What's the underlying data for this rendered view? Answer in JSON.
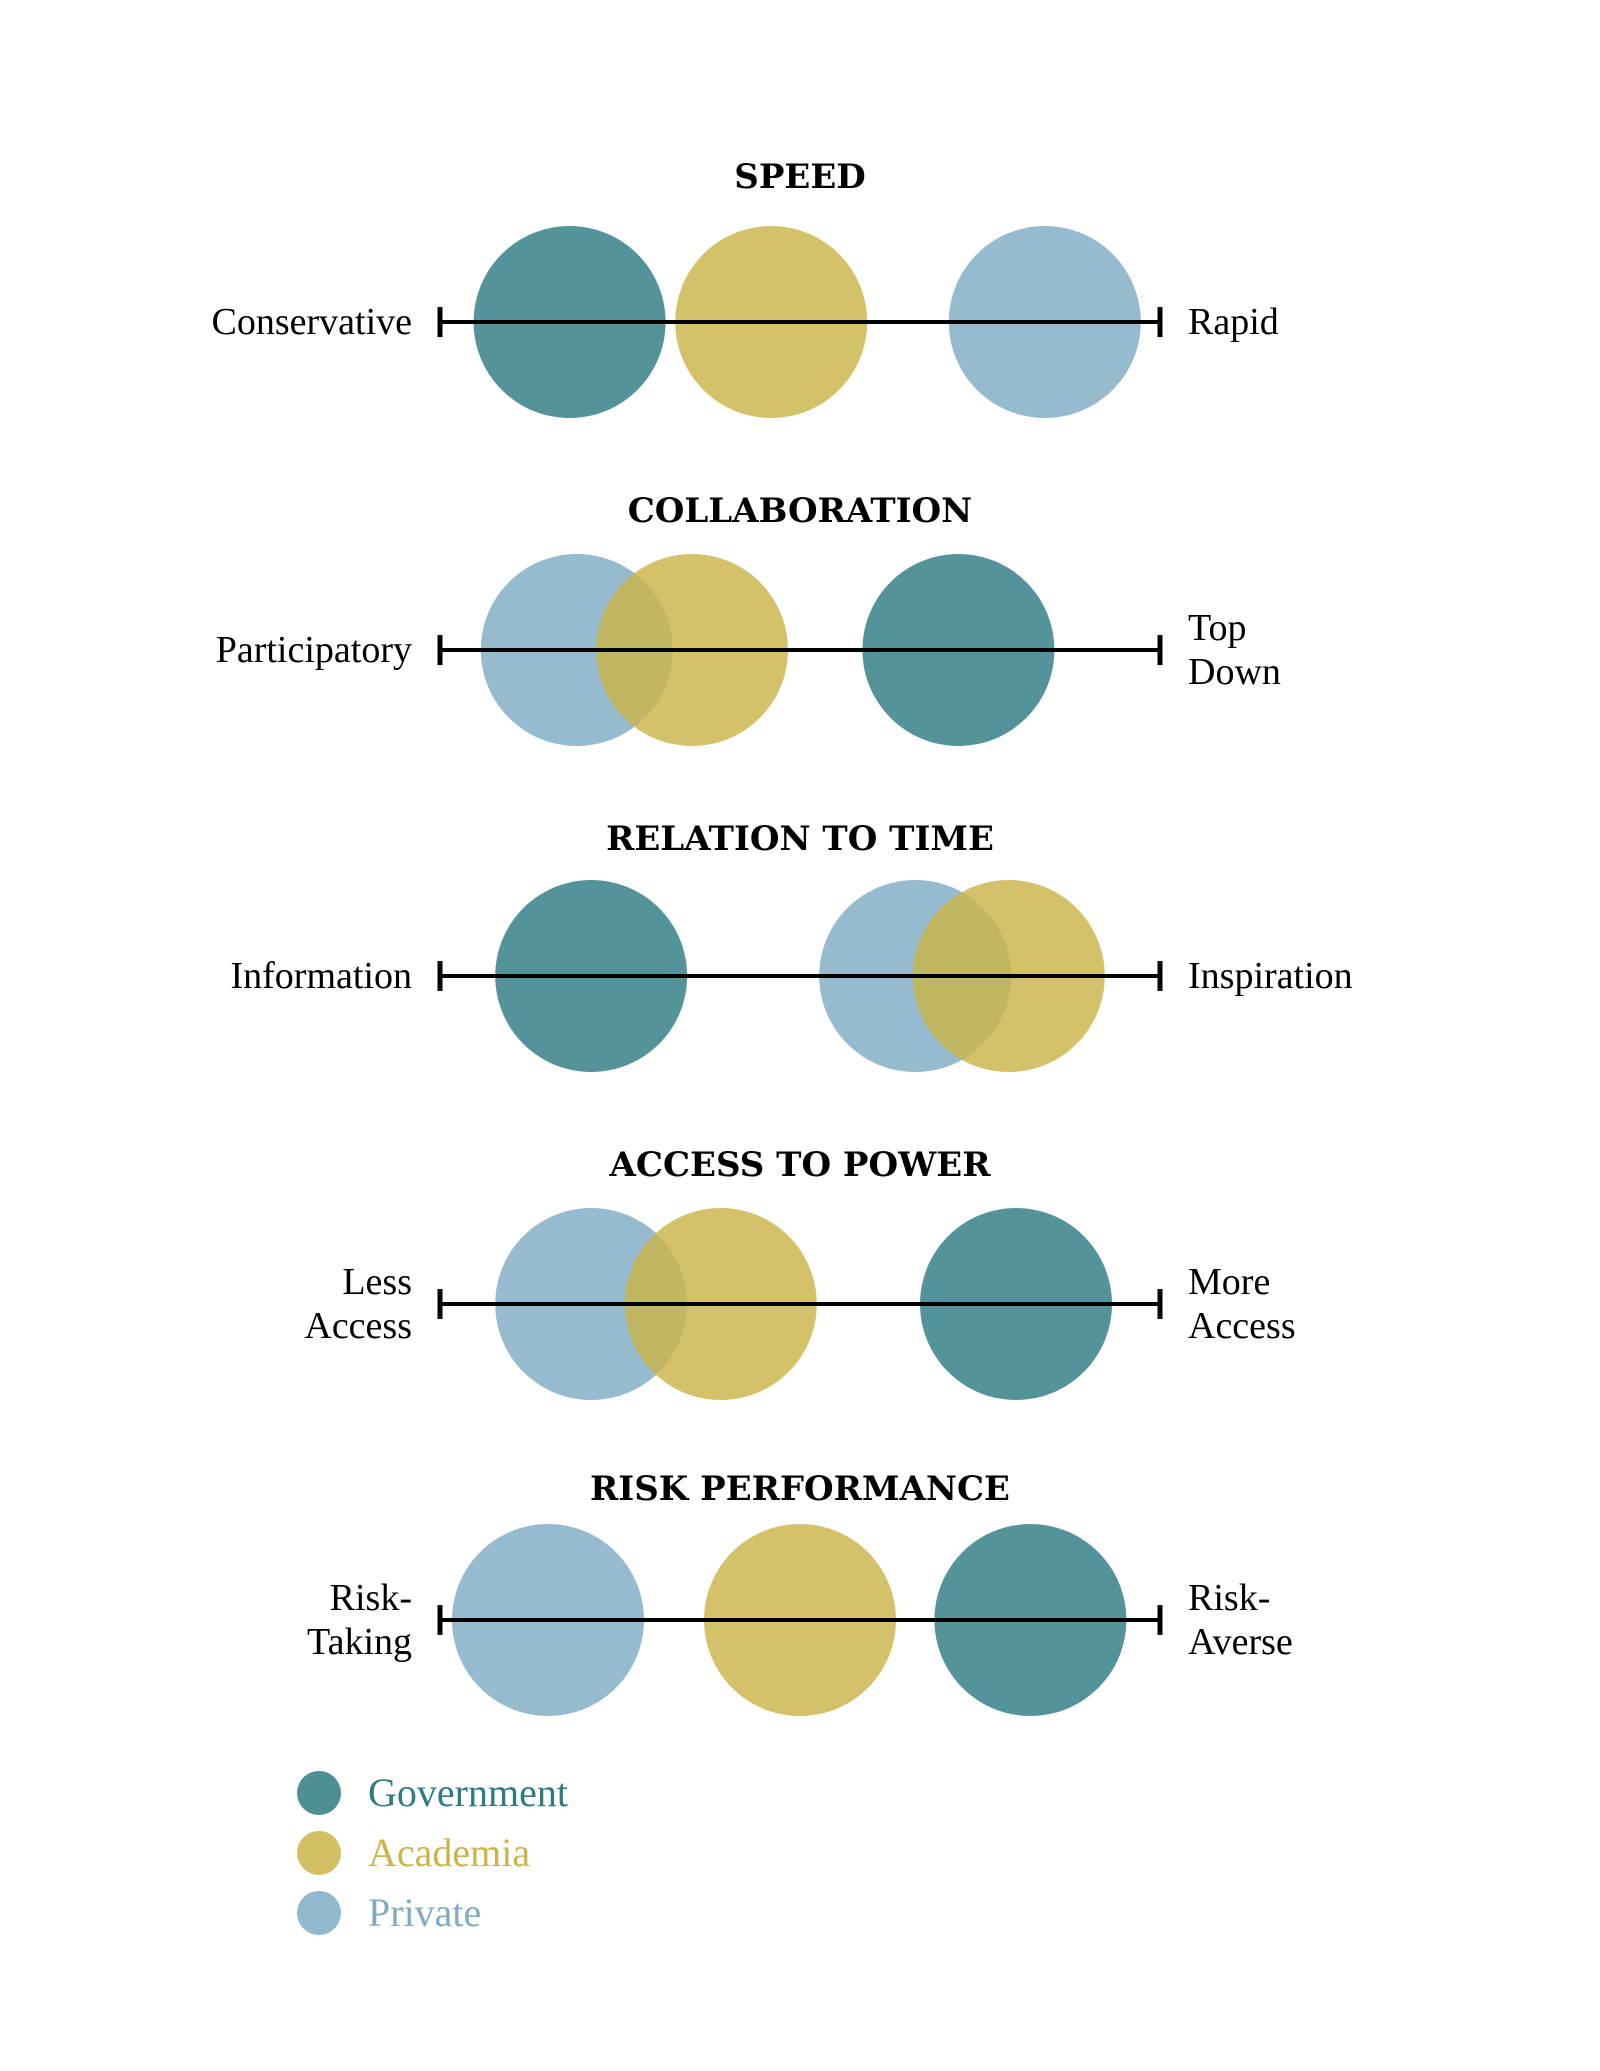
{
  "chart_data": {
    "type": "scatter",
    "colors": {
      "Government": "#2f7b84",
      "Academia": "#cbb54a",
      "Private": "#7fabc3"
    },
    "legend": {
      "placement": "bottom-left",
      "entries": [
        "Government",
        "Academia",
        "Private"
      ]
    },
    "panels": [
      {
        "title": "SPEED",
        "left_label": [
          "Conservative"
        ],
        "right_label": [
          "Rapid"
        ],
        "values": {
          "Government": 0.18,
          "Academia": 0.46,
          "Private": 0.84
        }
      },
      {
        "title": "COLLABORATION",
        "left_label": [
          "Participatory"
        ],
        "right_label": [
          "Top",
          "Down"
        ],
        "values": {
          "Private": 0.19,
          "Academia": 0.35,
          "Government": 0.72
        }
      },
      {
        "title": "RELATION TO TIME",
        "left_label": [
          "Information"
        ],
        "right_label": [
          "Inspiration"
        ],
        "values": {
          "Government": 0.21,
          "Private": 0.66,
          "Academia": 0.79
        }
      },
      {
        "title": "ACCESS TO POWER",
        "left_label": [
          "Less",
          "Access"
        ],
        "right_label": [
          "More",
          "Access"
        ],
        "values": {
          "Private": 0.21,
          "Academia": 0.39,
          "Government": 0.8
        }
      },
      {
        "title": "RISK PERFORMANCE",
        "left_label": [
          "Risk-",
          "Taking"
        ],
        "right_label": [
          "Risk-",
          "Averse"
        ],
        "values": {
          "Private": 0.15,
          "Academia": 0.5,
          "Government": 0.82
        }
      }
    ]
  }
}
